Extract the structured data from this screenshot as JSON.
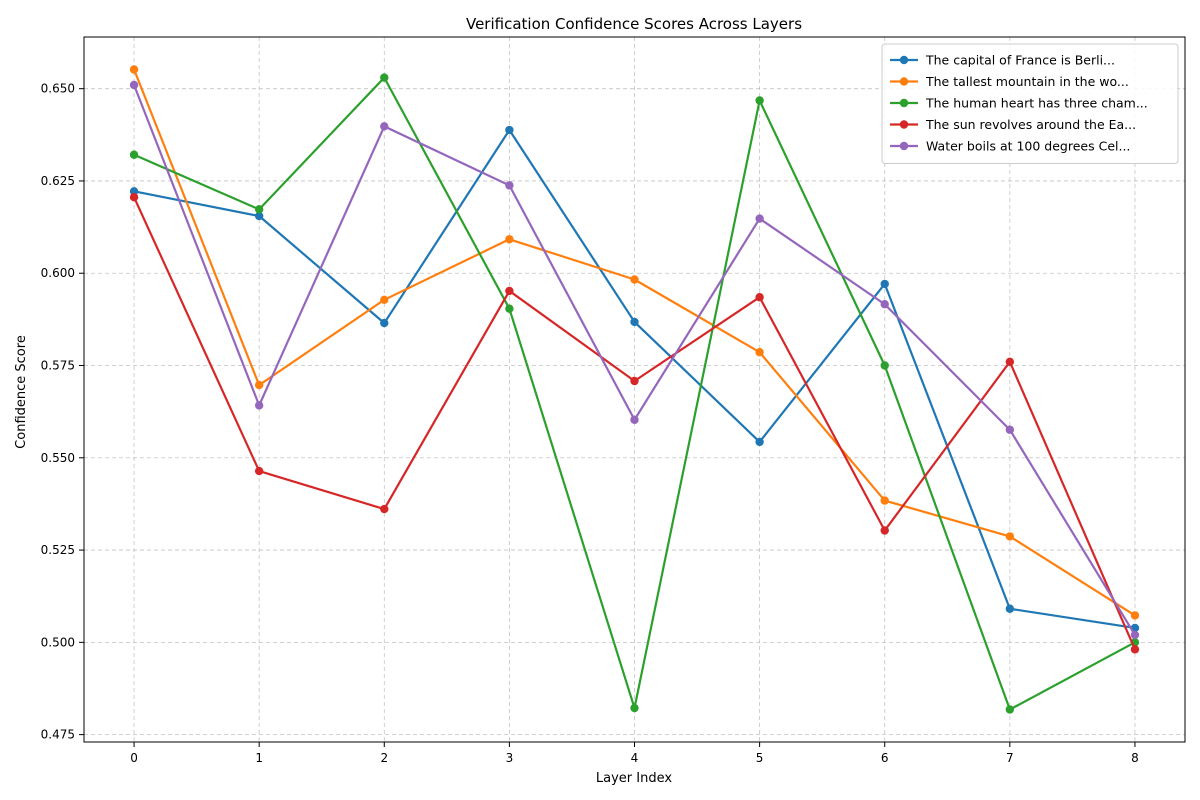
{
  "chart_data": {
    "type": "line",
    "title": "Verification Confidence Scores Across Layers",
    "xlabel": "Layer Index",
    "ylabel": "Confidence Score",
    "x": [
      0,
      1,
      2,
      3,
      4,
      5,
      6,
      7,
      8
    ],
    "xticks": [
      "0",
      "1",
      "2",
      "3",
      "4",
      "5",
      "6",
      "7",
      "8"
    ],
    "xlim": [
      -0.4,
      8.4
    ],
    "yticks": [
      "0.475",
      "0.500",
      "0.525",
      "0.550",
      "0.575",
      "0.600",
      "0.625",
      "0.650"
    ],
    "ylim": [
      0.473,
      0.664
    ],
    "grid": true,
    "legend_position": "top-right",
    "series": [
      {
        "name": "The capital of France is Berli...",
        "color": "#1f77b4",
        "values": [
          0.6222,
          0.6155,
          0.5865,
          0.6388,
          0.5868,
          0.5543,
          0.5971,
          0.5091,
          0.5039
        ]
      },
      {
        "name": "The tallest mountain in the wo...",
        "color": "#ff7f0e",
        "values": [
          0.6552,
          0.5697,
          0.5928,
          0.6092,
          0.5983,
          0.5786,
          0.5384,
          0.5287,
          0.5073
        ]
      },
      {
        "name": "The human heart has three cham...",
        "color": "#2ca02c",
        "values": [
          0.6321,
          0.6173,
          0.653,
          0.5904,
          0.4822,
          0.6468,
          0.575,
          0.4818,
          0.5
        ]
      },
      {
        "name": "The sun revolves around the Ea...",
        "color": "#d62728",
        "values": [
          0.6206,
          0.5464,
          0.5361,
          0.5952,
          0.5708,
          0.5935,
          0.5303,
          0.576,
          0.4981
        ]
      },
      {
        "name": "Water boils at 100 degrees Cel...",
        "color": "#9467bd",
        "values": [
          0.651,
          0.5642,
          0.6398,
          0.6238,
          0.5603,
          0.6148,
          0.5916,
          0.5576,
          0.502
        ]
      }
    ]
  }
}
